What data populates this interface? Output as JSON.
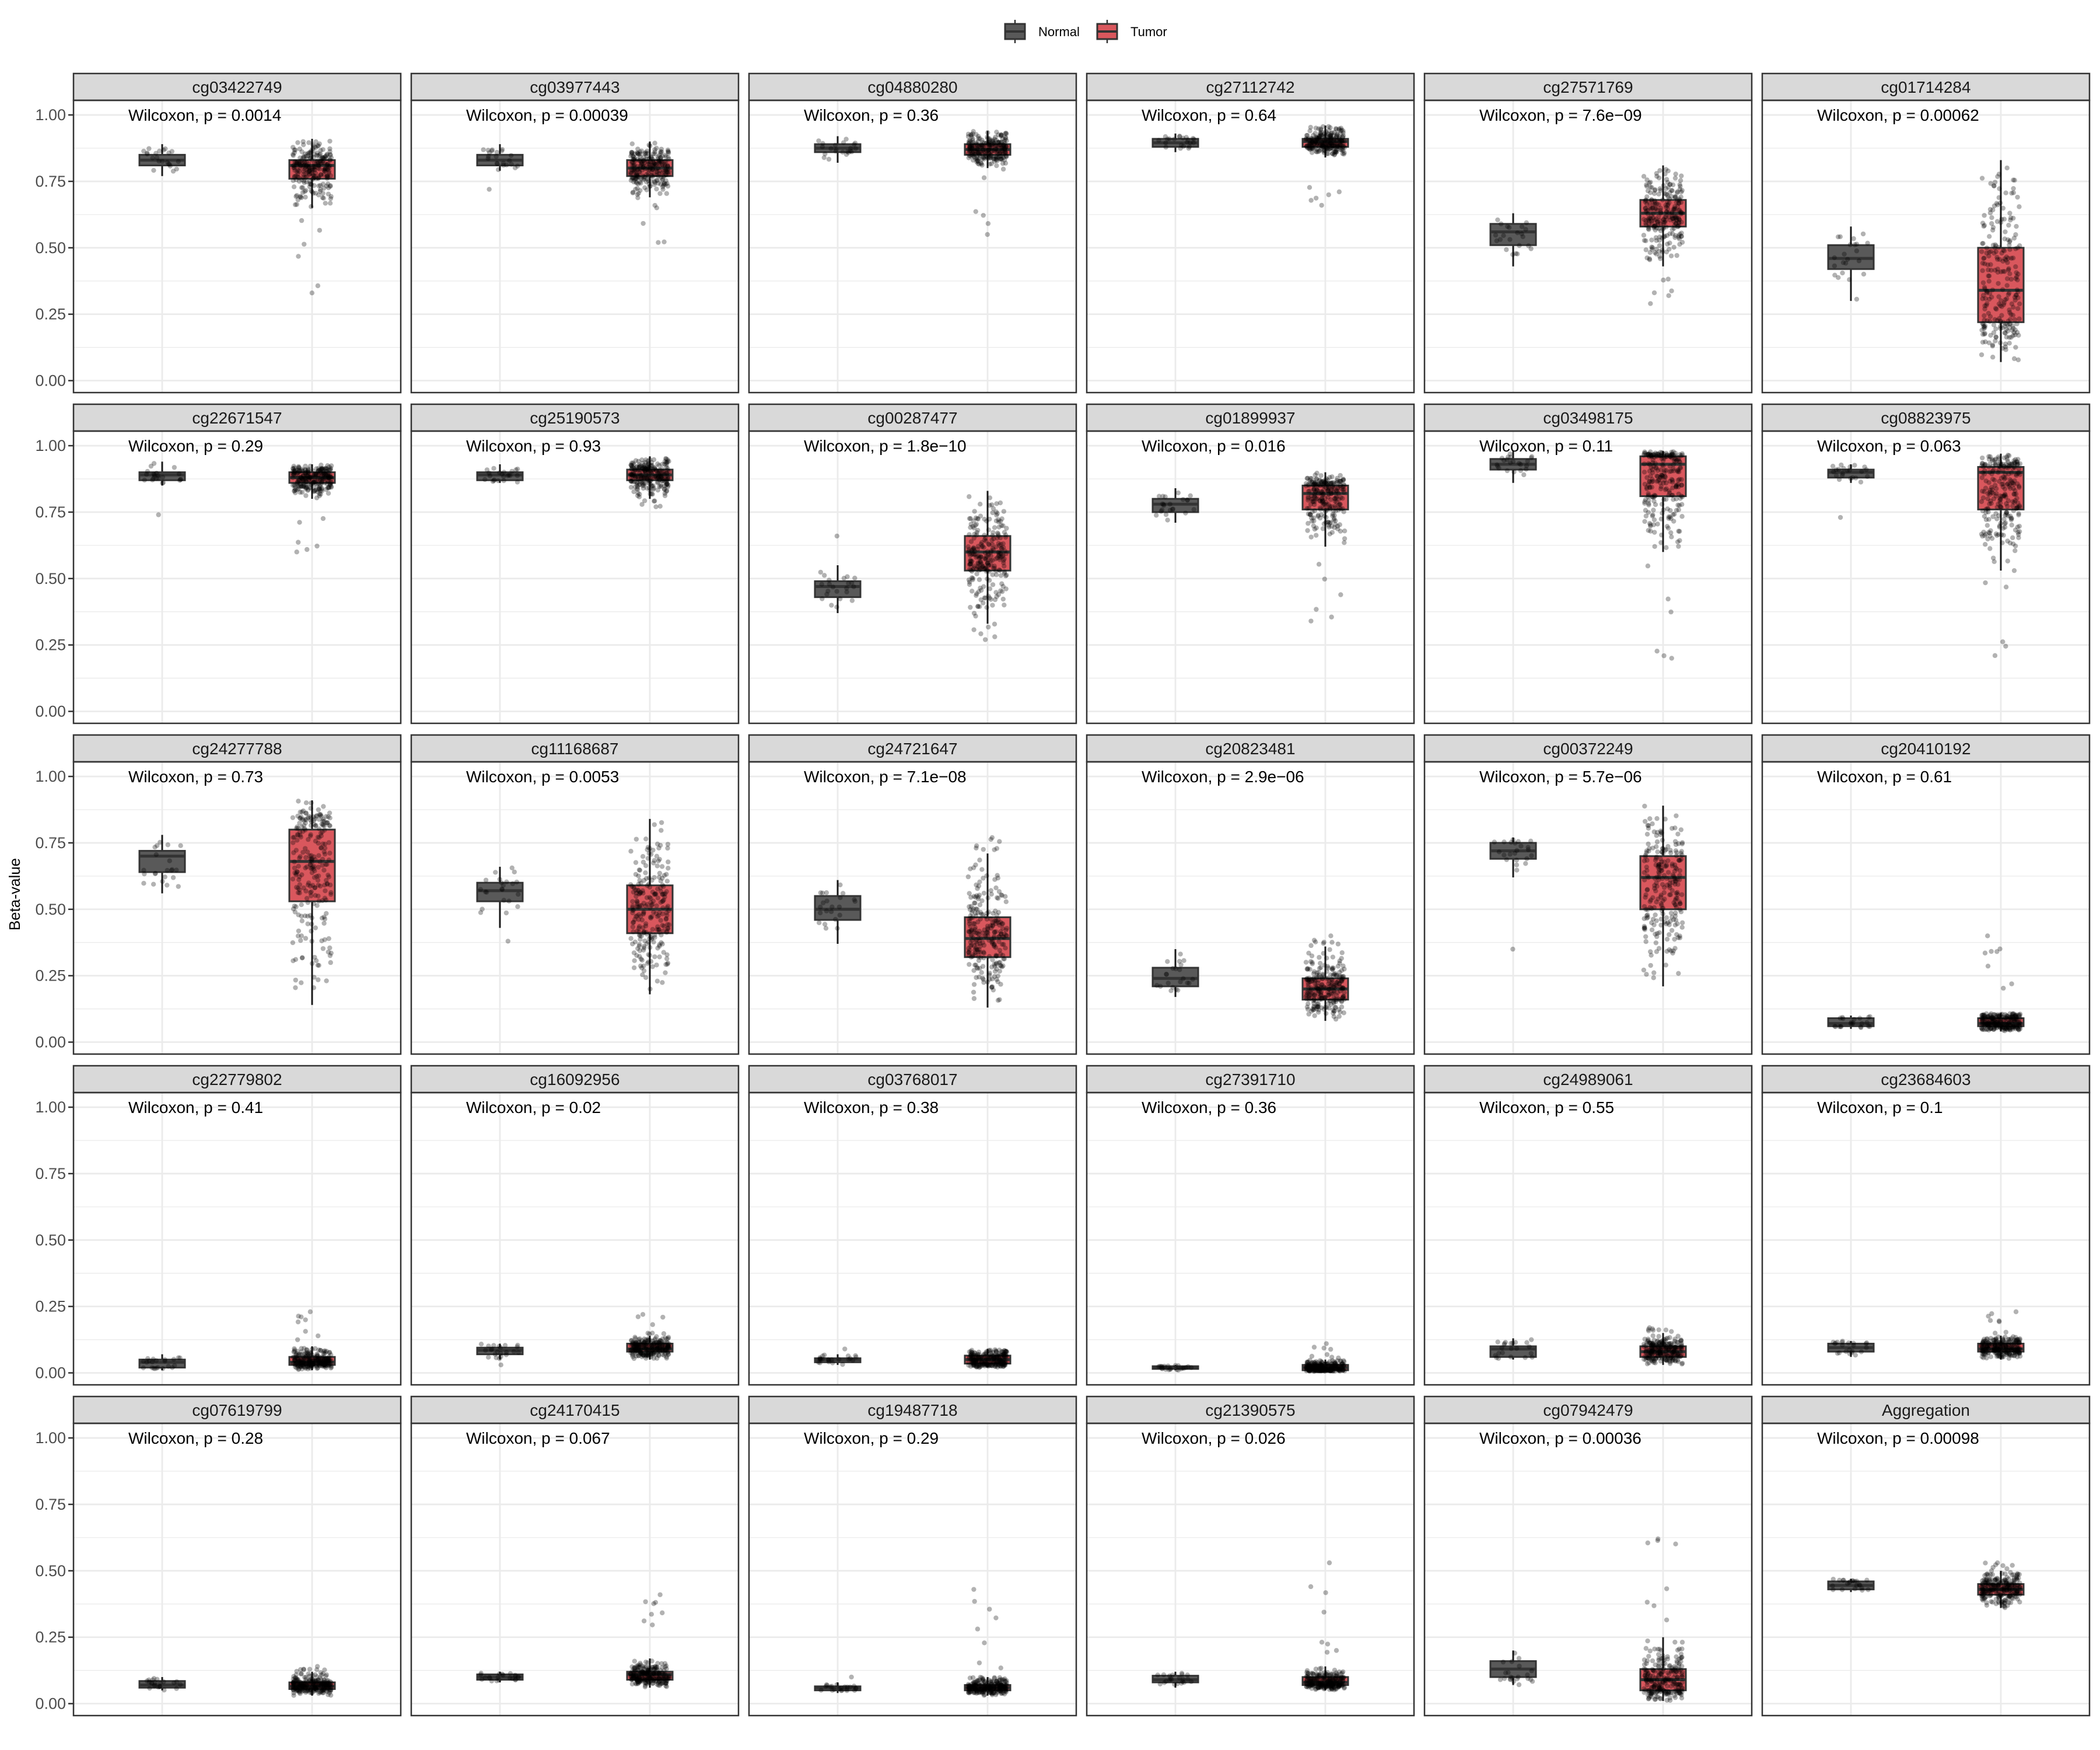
{
  "chart_data": {
    "type": "boxplot",
    "ylabel": "Beta-value",
    "xlabel": "",
    "ylim": [
      0,
      1
    ],
    "yticks": [
      "0.00",
      "0.25",
      "0.50",
      "0.75",
      "1.00"
    ],
    "ytick_values": [
      0,
      0.25,
      0.5,
      0.75,
      1.0
    ],
    "grid": true,
    "legend": {
      "placement": "top",
      "entries": [
        "Normal",
        "Tumor"
      ]
    },
    "colors": {
      "Normal": "#595959",
      "Tumor": "#d9575d",
      "outline": "#333333",
      "strip": "#d9d9d9",
      "grid": "#ebebeb"
    },
    "groups": [
      "Normal",
      "Tumor"
    ],
    "panels": [
      {
        "title": "cg03422749",
        "pvalue": "Wilcoxon, p = 0.0014",
        "Normal": {
          "wl": 0.77,
          "q1": 0.81,
          "med": 0.83,
          "q3": 0.85,
          "wh": 0.89
        },
        "Tumor": {
          "wl": 0.65,
          "q1": 0.76,
          "med": 0.81,
          "q3": 0.83,
          "wh": 0.91,
          "min": 0.33
        }
      },
      {
        "title": "cg03977443",
        "pvalue": "Wilcoxon, p = 0.00039",
        "Normal": {
          "wl": 0.79,
          "q1": 0.81,
          "med": 0.83,
          "q3": 0.85,
          "wh": 0.89,
          "min": 0.72
        },
        "Tumor": {
          "wl": 0.69,
          "q1": 0.77,
          "med": 0.8,
          "q3": 0.83,
          "wh": 0.9,
          "min": 0.52
        }
      },
      {
        "title": "cg04880280",
        "pvalue": "Wilcoxon, p = 0.36",
        "Normal": {
          "wl": 0.82,
          "q1": 0.86,
          "med": 0.875,
          "q3": 0.89,
          "wh": 0.92
        },
        "Tumor": {
          "wl": 0.8,
          "q1": 0.85,
          "med": 0.87,
          "q3": 0.89,
          "wh": 0.94,
          "min": 0.55
        }
      },
      {
        "title": "cg27112742",
        "pvalue": "Wilcoxon, p = 0.64",
        "Normal": {
          "wl": 0.86,
          "q1": 0.88,
          "med": 0.895,
          "q3": 0.91,
          "wh": 0.93
        },
        "Tumor": {
          "wl": 0.84,
          "q1": 0.88,
          "med": 0.9,
          "q3": 0.91,
          "wh": 0.96,
          "min": 0.66
        }
      },
      {
        "title": "cg27571769",
        "pvalue": "Wilcoxon, p = 7.6e−09",
        "Normal": {
          "wl": 0.43,
          "q1": 0.51,
          "med": 0.56,
          "q3": 0.59,
          "wh": 0.63
        },
        "Tumor": {
          "wl": 0.43,
          "q1": 0.58,
          "med": 0.63,
          "q3": 0.68,
          "wh": 0.81,
          "min": 0.29
        }
      },
      {
        "title": "cg01714284",
        "pvalue": "Wilcoxon, p = 0.00062",
        "Normal": {
          "wl": 0.3,
          "q1": 0.42,
          "med": 0.46,
          "q3": 0.51,
          "wh": 0.58
        },
        "Tumor": {
          "wl": 0.07,
          "q1": 0.22,
          "med": 0.34,
          "q3": 0.5,
          "wh": 0.83
        }
      },
      {
        "title": "cg22671547",
        "pvalue": "Wilcoxon, p = 0.29",
        "Normal": {
          "wl": 0.85,
          "q1": 0.87,
          "med": 0.89,
          "q3": 0.9,
          "wh": 0.94,
          "min": 0.74
        },
        "Tumor": {
          "wl": 0.8,
          "q1": 0.86,
          "med": 0.88,
          "q3": 0.9,
          "wh": 0.93,
          "min": 0.6
        }
      },
      {
        "title": "cg25190573",
        "pvalue": "Wilcoxon, p = 0.93",
        "Normal": {
          "wl": 0.86,
          "q1": 0.87,
          "med": 0.89,
          "q3": 0.9,
          "wh": 0.93
        },
        "Tumor": {
          "wl": 0.8,
          "q1": 0.87,
          "med": 0.89,
          "q3": 0.91,
          "wh": 0.96,
          "min": 0.77
        }
      },
      {
        "title": "cg00287477",
        "pvalue": "Wilcoxon, p = 1.8e−10",
        "Normal": {
          "wl": 0.37,
          "q1": 0.43,
          "med": 0.47,
          "q3": 0.49,
          "wh": 0.55,
          "max": 0.66
        },
        "Tumor": {
          "wl": 0.33,
          "q1": 0.53,
          "med": 0.6,
          "q3": 0.66,
          "wh": 0.83,
          "min": 0.27
        }
      },
      {
        "title": "cg01899937",
        "pvalue": "Wilcoxon, p = 0.016",
        "Normal": {
          "wl": 0.71,
          "q1": 0.75,
          "med": 0.78,
          "q3": 0.8,
          "wh": 0.84
        },
        "Tumor": {
          "wl": 0.62,
          "q1": 0.76,
          "med": 0.82,
          "q3": 0.85,
          "wh": 0.9,
          "min": 0.34
        }
      },
      {
        "title": "cg03498175",
        "pvalue": "Wilcoxon, p = 0.11",
        "Normal": {
          "wl": 0.86,
          "q1": 0.91,
          "med": 0.93,
          "q3": 0.95,
          "wh": 0.98
        },
        "Tumor": {
          "wl": 0.6,
          "q1": 0.81,
          "med": 0.93,
          "q3": 0.96,
          "wh": 0.98,
          "min": 0.2
        }
      },
      {
        "title": "cg08823975",
        "pvalue": "Wilcoxon, p = 0.063",
        "Normal": {
          "wl": 0.86,
          "q1": 0.88,
          "med": 0.9,
          "q3": 0.91,
          "wh": 0.93,
          "min": 0.73
        },
        "Tumor": {
          "wl": 0.53,
          "q1": 0.76,
          "med": 0.9,
          "q3": 0.92,
          "wh": 0.97,
          "min": 0.21
        }
      },
      {
        "title": "cg24277788",
        "pvalue": "Wilcoxon, p = 0.73",
        "Normal": {
          "wl": 0.56,
          "q1": 0.64,
          "med": 0.7,
          "q3": 0.72,
          "wh": 0.78
        },
        "Tumor": {
          "wl": 0.14,
          "q1": 0.53,
          "med": 0.68,
          "q3": 0.8,
          "wh": 0.91
        }
      },
      {
        "title": "cg11168687",
        "pvalue": "Wilcoxon, p = 0.0053",
        "Normal": {
          "wl": 0.43,
          "q1": 0.53,
          "med": 0.57,
          "q3": 0.6,
          "wh": 0.66,
          "min": 0.38
        },
        "Tumor": {
          "wl": 0.18,
          "q1": 0.41,
          "med": 0.5,
          "q3": 0.59,
          "wh": 0.84
        }
      },
      {
        "title": "cg24721647",
        "pvalue": "Wilcoxon, p = 7.1e−08",
        "Normal": {
          "wl": 0.37,
          "q1": 0.46,
          "med": 0.5,
          "q3": 0.55,
          "wh": 0.61
        },
        "Tumor": {
          "wl": 0.13,
          "q1": 0.32,
          "med": 0.39,
          "q3": 0.47,
          "wh": 0.71,
          "max": 0.77
        }
      },
      {
        "title": "cg20823481",
        "pvalue": "Wilcoxon, p = 2.9e−06",
        "Normal": {
          "wl": 0.17,
          "q1": 0.21,
          "med": 0.24,
          "q3": 0.28,
          "wh": 0.35
        },
        "Tumor": {
          "wl": 0.08,
          "q1": 0.16,
          "med": 0.2,
          "q3": 0.24,
          "wh": 0.36,
          "max": 0.4
        }
      },
      {
        "title": "cg00372249",
        "pvalue": "Wilcoxon, p = 5.7e−06",
        "Normal": {
          "wl": 0.62,
          "q1": 0.69,
          "med": 0.72,
          "q3": 0.75,
          "wh": 0.77,
          "min": 0.35
        },
        "Tumor": {
          "wl": 0.21,
          "q1": 0.5,
          "med": 0.62,
          "q3": 0.7,
          "wh": 0.89
        }
      },
      {
        "title": "cg20410192",
        "pvalue": "Wilcoxon, p = 0.61",
        "Normal": {
          "wl": 0.05,
          "q1": 0.06,
          "med": 0.07,
          "q3": 0.09,
          "wh": 0.1
        },
        "Tumor": {
          "wl": 0.04,
          "q1": 0.06,
          "med": 0.07,
          "q3": 0.09,
          "wh": 0.11,
          "max": 0.4
        }
      },
      {
        "title": "cg22779802",
        "pvalue": "Wilcoxon, p = 0.41",
        "Normal": {
          "wl": 0.01,
          "q1": 0.02,
          "med": 0.04,
          "q3": 0.05,
          "wh": 0.07
        },
        "Tumor": {
          "wl": 0.01,
          "q1": 0.03,
          "med": 0.04,
          "q3": 0.06,
          "wh": 0.1,
          "max": 0.23
        }
      },
      {
        "title": "cg16092956",
        "pvalue": "Wilcoxon, p = 0.02",
        "Normal": {
          "wl": 0.05,
          "q1": 0.07,
          "med": 0.085,
          "q3": 0.095,
          "wh": 0.11,
          "min": 0.03
        },
        "Tumor": {
          "wl": 0.05,
          "q1": 0.08,
          "med": 0.09,
          "q3": 0.11,
          "wh": 0.14,
          "max": 0.22
        }
      },
      {
        "title": "cg03768017",
        "pvalue": "Wilcoxon, p = 0.38",
        "Normal": {
          "wl": 0.03,
          "q1": 0.04,
          "med": 0.05,
          "q3": 0.055,
          "wh": 0.07,
          "max": 0.09
        },
        "Tumor": {
          "wl": 0.02,
          "q1": 0.035,
          "med": 0.05,
          "q3": 0.065,
          "wh": 0.09
        }
      },
      {
        "title": "cg27391710",
        "pvalue": "Wilcoxon, p = 0.36",
        "Normal": {
          "wl": 0.01,
          "q1": 0.015,
          "med": 0.02,
          "q3": 0.025,
          "wh": 0.03
        },
        "Tumor": {
          "wl": 0.005,
          "q1": 0.01,
          "med": 0.02,
          "q3": 0.03,
          "wh": 0.05,
          "max": 0.11
        }
      },
      {
        "title": "cg24989061",
        "pvalue": "Wilcoxon, p = 0.55",
        "Normal": {
          "wl": 0.05,
          "q1": 0.06,
          "med": 0.09,
          "q3": 0.1,
          "wh": 0.13
        },
        "Tumor": {
          "wl": 0.03,
          "q1": 0.06,
          "med": 0.08,
          "q3": 0.1,
          "wh": 0.15,
          "max": 0.17
        }
      },
      {
        "title": "cg23684603",
        "pvalue": "Wilcoxon, p = 0.1",
        "Normal": {
          "wl": 0.06,
          "q1": 0.08,
          "med": 0.095,
          "q3": 0.11,
          "wh": 0.12
        },
        "Tumor": {
          "wl": 0.05,
          "q1": 0.08,
          "med": 0.09,
          "q3": 0.11,
          "wh": 0.14,
          "max": 0.23
        }
      },
      {
        "title": "cg07619799",
        "pvalue": "Wilcoxon, p = 0.28",
        "Normal": {
          "wl": 0.05,
          "q1": 0.06,
          "med": 0.07,
          "q3": 0.085,
          "wh": 0.1
        },
        "Tumor": {
          "wl": 0.03,
          "q1": 0.055,
          "med": 0.065,
          "q3": 0.08,
          "wh": 0.12,
          "max": 0.14
        }
      },
      {
        "title": "cg24170415",
        "pvalue": "Wilcoxon, p = 0.067",
        "Normal": {
          "wl": 0.08,
          "q1": 0.09,
          "med": 0.1,
          "q3": 0.11,
          "wh": 0.12
        },
        "Tumor": {
          "wl": 0.06,
          "q1": 0.09,
          "med": 0.11,
          "q3": 0.12,
          "wh": 0.17,
          "max": 0.41
        }
      },
      {
        "title": "cg19487718",
        "pvalue": "Wilcoxon, p = 0.29",
        "Normal": {
          "wl": 0.04,
          "q1": 0.05,
          "med": 0.06,
          "q3": 0.065,
          "wh": 0.08,
          "max": 0.1
        },
        "Tumor": {
          "wl": 0.03,
          "q1": 0.05,
          "med": 0.06,
          "q3": 0.07,
          "wh": 0.1,
          "max": 0.43
        }
      },
      {
        "title": "cg21390575",
        "pvalue": "Wilcoxon, p = 0.026",
        "Normal": {
          "wl": 0.06,
          "q1": 0.08,
          "med": 0.09,
          "q3": 0.105,
          "wh": 0.12
        },
        "Tumor": {
          "wl": 0.05,
          "q1": 0.07,
          "med": 0.08,
          "q3": 0.1,
          "wh": 0.14,
          "max": 0.53
        }
      },
      {
        "title": "cg07942479",
        "pvalue": "Wilcoxon, p = 0.00036",
        "Normal": {
          "wl": 0.07,
          "q1": 0.1,
          "med": 0.13,
          "q3": 0.16,
          "wh": 0.2
        },
        "Tumor": {
          "wl": 0.01,
          "q1": 0.05,
          "med": 0.09,
          "q3": 0.13,
          "wh": 0.25,
          "max": 0.62
        }
      },
      {
        "title": "Aggregation",
        "pvalue": "Wilcoxon, p = 0.00098",
        "Normal": {
          "wl": 0.42,
          "q1": 0.43,
          "med": 0.445,
          "q3": 0.46,
          "wh": 0.47
        },
        "Tumor": {
          "wl": 0.36,
          "q1": 0.41,
          "med": 0.43,
          "q3": 0.45,
          "wh": 0.5,
          "max": 0.53
        }
      }
    ]
  }
}
